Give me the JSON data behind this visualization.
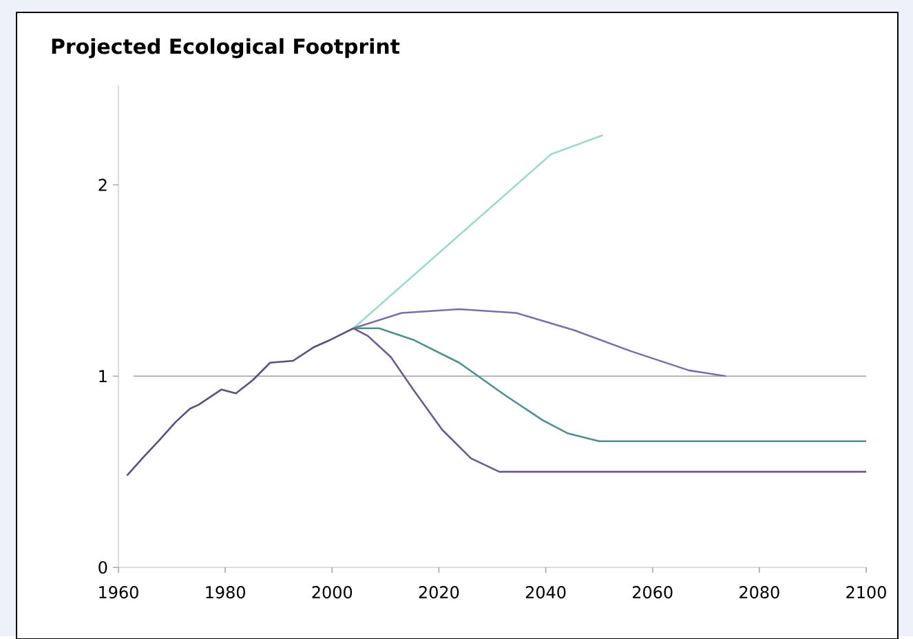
{
  "chart_data": {
    "type": "line",
    "title": "Projected Ecological Footprint",
    "series": [
      {
        "color": "#5b4f7d",
        "x": [
          1961.6,
          1964.8,
          1967.5,
          1970.7,
          1973.4,
          1975,
          1979.3,
          1982,
          1985.2,
          1988.4,
          1992.7,
          1996.5,
          1999.7,
          2004
        ],
        "values": [
          0.48,
          0.58,
          0.66,
          0.76,
          0.83,
          0.85,
          0.93,
          0.91,
          0.98,
          1.07,
          1.08,
          1.15,
          1.19,
          1.25
        ]
      },
      {
        "color": "#9fd8cc",
        "x": [
          2004,
          2041,
          2050.7
        ],
        "values": [
          1.25,
          2.16,
          2.26
        ]
      },
      {
        "color": "#7a70a8",
        "x": [
          2004,
          2013,
          2023.8,
          2034.5,
          2045.3,
          2056,
          2066.8,
          2073.7
        ],
        "values": [
          1.25,
          1.33,
          1.35,
          1.33,
          1.24,
          1.13,
          1.03,
          1.0
        ]
      },
      {
        "color": "#4f8f8a",
        "x": [
          2004,
          2008.8,
          2015.2,
          2023.8,
          2032.4,
          2039.4,
          2044.2,
          2050,
          2100
        ],
        "values": [
          1.25,
          1.25,
          1.19,
          1.07,
          0.9,
          0.77,
          0.7,
          0.66,
          0.66
        ]
      },
      {
        "color": "#6a5a90",
        "x": [
          2004,
          2006.7,
          2011,
          2015.2,
          2020.6,
          2026,
          2031.3,
          2100
        ],
        "values": [
          1.25,
          1.21,
          1.1,
          0.93,
          0.72,
          0.57,
          0.5,
          0.5
        ]
      }
    ],
    "xlim": [
      1960,
      2100
    ],
    "xticks": [
      1960,
      1980,
      2000,
      2020,
      2040,
      2060,
      2080,
      2100
    ],
    "ylim": [
      0,
      2.52
    ],
    "yticks": [
      0,
      1,
      2
    ],
    "ref_lines": [
      {
        "axis": "y",
        "value": 1,
        "color": "#a0a0a0"
      }
    ],
    "grid": false,
    "legend": false,
    "marker": "none",
    "line_style": "solid"
  }
}
